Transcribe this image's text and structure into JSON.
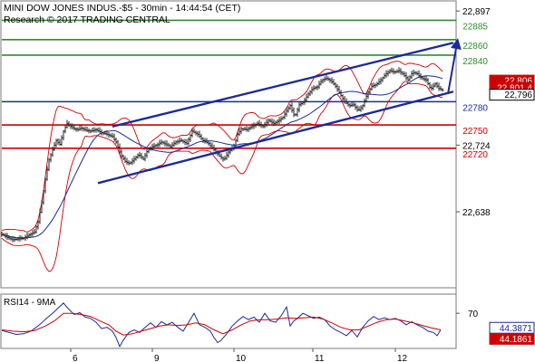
{
  "header": {
    "line1": "MINI DOW JONES INDUS.-$5 - 30min - 14:44:54 (CET)",
    "line2": "Research © 2017 TRADING CENTRAL"
  },
  "chart_data": [
    {
      "type": "candlestick",
      "title": "MINI DOW JONES INDUS.-$5 - 30min - 14:44:54 (CET)",
      "x_tick_labels": [
        "6",
        "9",
        "10",
        "11",
        "12"
      ],
      "y_tick_labels": [
        "22,897",
        "22,724",
        "22,638"
      ],
      "y_ticks": [
        22897,
        22724,
        22638
      ],
      "ylim": [
        22540,
        22910
      ],
      "last_price": 22796,
      "last_price_label": "22,796",
      "level_labels": [
        {
          "label": "22,806",
          "value": 22806,
          "color": "#d00000"
        },
        {
          "label": "22,801.4",
          "value": 22801.4,
          "color": "#d00000"
        }
      ],
      "horizontal_levels": [
        {
          "label": "22885",
          "value": 22885,
          "color": "#2e8b2e",
          "kind": "resistance"
        },
        {
          "label": "22860",
          "value": 22860,
          "color": "#2e8b2e",
          "kind": "resistance"
        },
        {
          "label": "22840",
          "value": 22840,
          "color": "#2e8b2e",
          "kind": "resistance"
        },
        {
          "label": "22780",
          "value": 22780,
          "color": "#1a2a9a",
          "kind": "pivot"
        },
        {
          "label": "22750",
          "value": 22750,
          "color": "#d00000",
          "kind": "support"
        },
        {
          "label": "22720",
          "value": 22720,
          "color": "#d00000",
          "kind": "support"
        }
      ],
      "channel": {
        "color": "#1a2a9a",
        "upper": [
          {
            "x": 124,
            "y": 22748
          },
          {
            "x": 500,
            "y": 22856
          }
        ],
        "lower": [
          {
            "x": 108,
            "y": 22675
          },
          {
            "x": 500,
            "y": 22793
          }
        ]
      },
      "arrow": {
        "from": {
          "x": 494,
          "y": 22790
        },
        "to": {
          "x": 505,
          "y": 22862
        },
        "color": "#1a2a9a"
      },
      "path_points": [
        [
          2,
          22609
        ],
        [
          8,
          22605
        ],
        [
          14,
          22602
        ],
        [
          20,
          22603
        ],
        [
          26,
          22604
        ],
        [
          32,
          22608
        ],
        [
          38,
          22612
        ],
        [
          42,
          22625
        ],
        [
          46,
          22650
        ],
        [
          50,
          22680
        ],
        [
          54,
          22705
        ],
        [
          58,
          22718
        ],
        [
          62,
          22730
        ],
        [
          66,
          22725
        ],
        [
          70,
          22742
        ],
        [
          74,
          22752
        ],
        [
          78,
          22748
        ],
        [
          82,
          22745
        ],
        [
          86,
          22744
        ],
        [
          90,
          22746
        ],
        [
          95,
          22743
        ],
        [
          100,
          22742
        ],
        [
          106,
          22744
        ],
        [
          112,
          22740
        ],
        [
          118,
          22738
        ],
        [
          124,
          22735
        ],
        [
          128,
          22728
        ],
        [
          133,
          22712
        ],
        [
          138,
          22703
        ],
        [
          143,
          22700
        ],
        [
          148,
          22706
        ],
        [
          153,
          22712
        ],
        [
          158,
          22706
        ],
        [
          163,
          22718
        ],
        [
          168,
          22722
        ],
        [
          173,
          22724
        ],
        [
          178,
          22728
        ],
        [
          183,
          22725
        ],
        [
          188,
          22722
        ],
        [
          194,
          22728
        ],
        [
          200,
          22730
        ],
        [
          206,
          22726
        ],
        [
          212,
          22742
        ],
        [
          218,
          22738
        ],
        [
          224,
          22730
        ],
        [
          230,
          22726
        ],
        [
          236,
          22718
        ],
        [
          242,
          22710
        ],
        [
          247,
          22705
        ],
        [
          252,
          22715
        ],
        [
          258,
          22722
        ],
        [
          262,
          22738
        ],
        [
          266,
          22745
        ],
        [
          272,
          22744
        ],
        [
          278,
          22748
        ],
        [
          284,
          22752
        ],
        [
          290,
          22748
        ],
        [
          296,
          22756
        ],
        [
          302,
          22752
        ],
        [
          308,
          22756
        ],
        [
          312,
          22760
        ],
        [
          316,
          22768
        ],
        [
          320,
          22775
        ],
        [
          325,
          22760
        ],
        [
          330,
          22776
        ],
        [
          335,
          22780
        ],
        [
          340,
          22790
        ],
        [
          345,
          22797
        ],
        [
          350,
          22799
        ],
        [
          355,
          22808
        ],
        [
          360,
          22810
        ],
        [
          365,
          22807
        ],
        [
          370,
          22800
        ],
        [
          375,
          22790
        ],
        [
          380,
          22780
        ],
        [
          385,
          22775
        ],
        [
          390,
          22776
        ],
        [
          395,
          22768
        ],
        [
          400,
          22775
        ],
        [
          405,
          22790
        ],
        [
          410,
          22800
        ],
        [
          415,
          22802
        ],
        [
          420,
          22808
        ],
        [
          425,
          22815
        ],
        [
          430,
          22820
        ],
        [
          435,
          22818
        ],
        [
          440,
          22820
        ],
        [
          445,
          22815
        ],
        [
          450,
          22808
        ],
        [
          455,
          22818
        ],
        [
          460,
          22816
        ],
        [
          465,
          22810
        ],
        [
          470,
          22808
        ],
        [
          475,
          22796
        ],
        [
          480,
          22803
        ],
        [
          484,
          22797
        ],
        [
          488,
          22795
        ]
      ]
    },
    {
      "type": "line",
      "title": "RSI14 - 9MA",
      "y_tick_labels": [
        "70"
      ],
      "y_ticks": [
        70
      ],
      "ylim": [
        15,
        100
      ],
      "x_tick_labels": [
        "6",
        "9",
        "10",
        "11",
        "12"
      ],
      "value_labels": [
        {
          "label": "44.3871",
          "value": 44.3871,
          "color": "#1a2a9a"
        },
        {
          "label": "44.1861",
          "value": 44.1861,
          "color": "#d00000"
        }
      ],
      "series": [
        {
          "color": "#1a2a9a",
          "points": [
            [
              2,
              43
            ],
            [
              10,
              40
            ],
            [
              18,
              37
            ],
            [
              26,
              38
            ],
            [
              34,
              42
            ],
            [
              40,
              48
            ],
            [
              46,
              55
            ],
            [
              52,
              63
            ],
            [
              58,
              70
            ],
            [
              64,
              78
            ],
            [
              70,
              86
            ],
            [
              76,
              76
            ],
            [
              82,
              68
            ],
            [
              88,
              71
            ],
            [
              94,
              64
            ],
            [
              100,
              62
            ],
            [
              106,
              56
            ],
            [
              112,
              46
            ],
            [
              118,
              48
            ],
            [
              124,
              42
            ],
            [
              128,
              32
            ],
            [
              132,
              18
            ],
            [
              136,
              28
            ],
            [
              142,
              40
            ],
            [
              148,
              44
            ],
            [
              154,
              40
            ],
            [
              160,
              48
            ],
            [
              166,
              55
            ],
            [
              172,
              48
            ],
            [
              178,
              57
            ],
            [
              184,
              52
            ],
            [
              190,
              56
            ],
            [
              196,
              48
            ],
            [
              202,
              42
            ],
            [
              208,
              56
            ],
            [
              214,
              70
            ],
            [
              220,
              52
            ],
            [
              226,
              48
            ],
            [
              232,
              42
            ],
            [
              236,
              32
            ],
            [
              240,
              24
            ],
            [
              244,
              28
            ],
            [
              250,
              38
            ],
            [
              256,
              50
            ],
            [
              262,
              58
            ],
            [
              268,
              65
            ],
            [
              274,
              60
            ],
            [
              280,
              64
            ],
            [
              286,
              56
            ],
            [
              292,
              70
            ],
            [
              298,
              58
            ],
            [
              304,
              56
            ],
            [
              310,
              66
            ],
            [
              316,
              80
            ],
            [
              320,
              50
            ],
            [
              324,
              58
            ],
            [
              328,
              62
            ],
            [
              334,
              70
            ],
            [
              340,
              66
            ],
            [
              346,
              62
            ],
            [
              352,
              64
            ],
            [
              358,
              60
            ],
            [
              364,
              50
            ],
            [
              370,
              44
            ],
            [
              376,
              40
            ],
            [
              382,
              35
            ],
            [
              388,
              43
            ],
            [
              394,
              33
            ],
            [
              400,
              48
            ],
            [
              406,
              58
            ],
            [
              412,
              65
            ],
            [
              418,
              60
            ],
            [
              424,
              63
            ],
            [
              430,
              60
            ],
            [
              436,
              62
            ],
            [
              442,
              58
            ],
            [
              448,
              52
            ],
            [
              454,
              57
            ],
            [
              460,
              52
            ],
            [
              466,
              48
            ],
            [
              472,
              42
            ],
            [
              478,
              40
            ],
            [
              482,
              35
            ],
            [
              486,
              44
            ]
          ]
        },
        {
          "color": "#d00000",
          "points": [
            [
              2,
              44
            ],
            [
              14,
              42
            ],
            [
              26,
              41
            ],
            [
              38,
              43
            ],
            [
              50,
              50
            ],
            [
              60,
              58
            ],
            [
              70,
              70
            ],
            [
              80,
              70
            ],
            [
              90,
              68
            ],
            [
              100,
              65
            ],
            [
              110,
              58
            ],
            [
              120,
              52
            ],
            [
              128,
              42
            ],
            [
              136,
              36
            ],
            [
              146,
              38
            ],
            [
              156,
              42
            ],
            [
              166,
              46
            ],
            [
              176,
              50
            ],
            [
              186,
              52
            ],
            [
              196,
              51
            ],
            [
              206,
              52
            ],
            [
              216,
              55
            ],
            [
              226,
              52
            ],
            [
              236,
              44
            ],
            [
              246,
              38
            ],
            [
              256,
              44
            ],
            [
              266,
              52
            ],
            [
              276,
              58
            ],
            [
              286,
              60
            ],
            [
              296,
              60
            ],
            [
              306,
              61
            ],
            [
              316,
              63
            ],
            [
              326,
              62
            ],
            [
              336,
              63
            ],
            [
              346,
              64
            ],
            [
              356,
              61
            ],
            [
              366,
              55
            ],
            [
              376,
              48
            ],
            [
              386,
              44
            ],
            [
              396,
              44
            ],
            [
              406,
              50
            ],
            [
              416,
              56
            ],
            [
              426,
              60
            ],
            [
              436,
              61
            ],
            [
              446,
              58
            ],
            [
              456,
              55
            ],
            [
              466,
              51
            ],
            [
              476,
              47
            ],
            [
              486,
              44
            ]
          ]
        }
      ]
    }
  ]
}
